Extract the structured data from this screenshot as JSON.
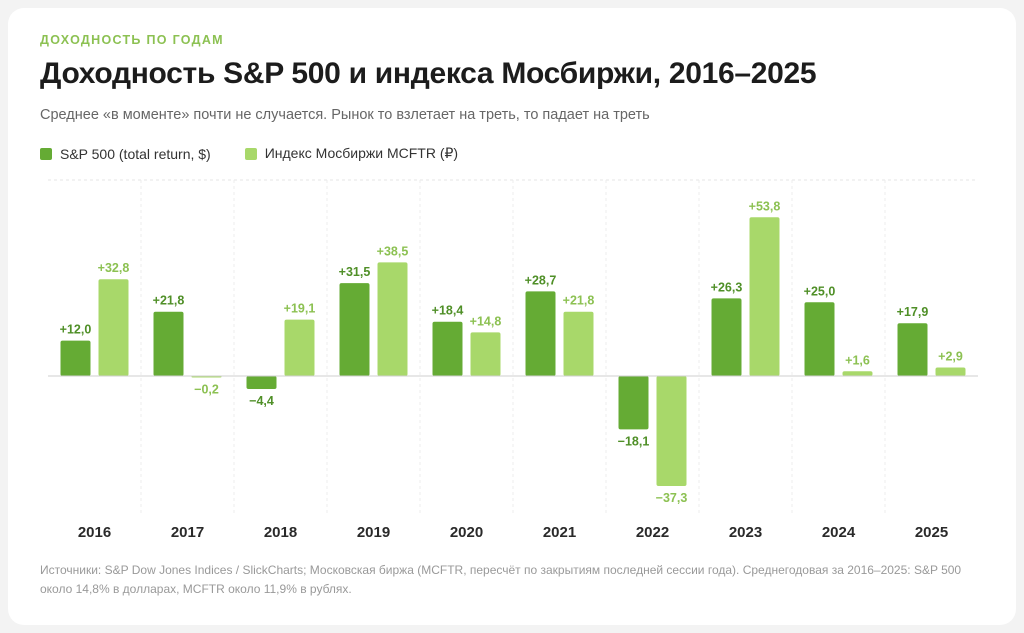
{
  "header": {
    "eyebrow": "ДОХОДНОСТЬ ПО ГОДАМ",
    "title": "Доходность S&P 500 и индекса Мосбиржи, 2016–2025",
    "subtitle": "Среднее «в моменте» почти не случается. Рынок то взлетает на треть, то падает на треть"
  },
  "legend": [
    {
      "label": "S&P 500 (total return, $)",
      "color": "#65ab34"
    },
    {
      "label": "Индекс Мосбиржи MCFTR (₽)",
      "color": "#a8d86a"
    }
  ],
  "chart_data": {
    "type": "bar",
    "categories": [
      "2016",
      "2017",
      "2018",
      "2019",
      "2020",
      "2021",
      "2022",
      "2023",
      "2024",
      "2025"
    ],
    "series": [
      {
        "name": "S&P 500 (total return, $)",
        "color": "#65ab34",
        "label_color": "#4f8f27",
        "values": [
          12.0,
          21.8,
          -4.4,
          31.5,
          18.4,
          28.7,
          -18.1,
          26.3,
          25.0,
          17.9
        ],
        "labels": [
          "+12,0",
          "+21,8",
          "−4,4",
          "+31,5",
          "+18,4",
          "+28,7",
          "−18,1",
          "+26,3",
          "+25,0",
          "+17,9"
        ]
      },
      {
        "name": "Индекс Мосбиржи MCFTR (₽)",
        "color": "#a8d86a",
        "label_color": "#8cc152",
        "values": [
          32.8,
          -0.2,
          19.1,
          38.5,
          14.8,
          21.8,
          -37.3,
          53.8,
          1.6,
          2.9
        ],
        "labels": [
          "+32,8",
          "−0,2",
          "+19,1",
          "+38,5",
          "+14,8",
          "+21,8",
          "−37,3",
          "+53,8",
          "+1,6",
          "+2,9"
        ]
      }
    ],
    "ylim": [
      -48,
      66.5
    ],
    "legend_position": "top-left",
    "grid": false
  },
  "source": "Источники: S&P Dow Jones Indices / SlickCharts; Московская биржа (MCFTR, пересчёт по закрытиям последней сессии года). Среднегодовая за 2016–2025: S&P 500 около 14,8% в долларах, MCFTR около 11,9% в рублях."
}
